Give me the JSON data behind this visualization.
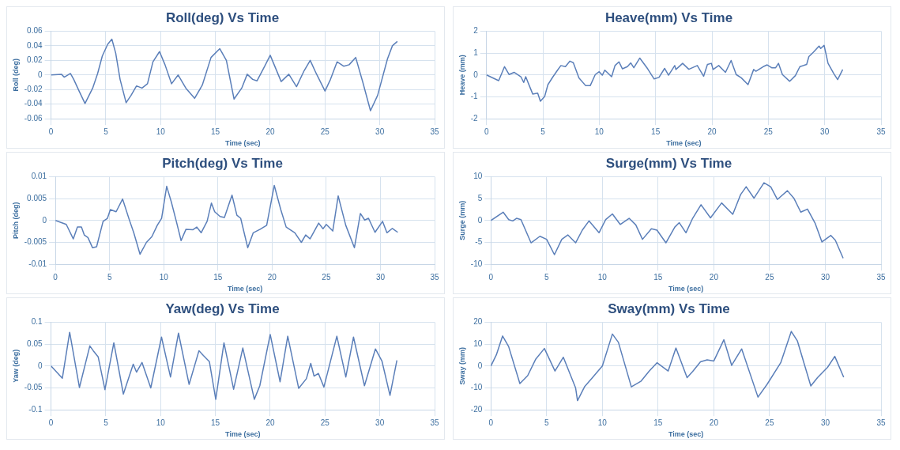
{
  "chart_data": [
    {
      "type": "line",
      "title": "Roll(deg) Vs Time",
      "xlabel": "Time (sec)",
      "ylabel": "Roll (deg)",
      "xlim": [
        0,
        35
      ],
      "xticks": [
        0,
        5,
        10,
        15,
        20,
        25,
        30,
        35
      ],
      "ylim": [
        -0.06,
        0.06
      ],
      "yticks": [
        -0.06,
        -0.04,
        -0.02,
        0,
        0.02,
        0.04,
        0.06
      ],
      "grid": true,
      "series": [
        {
          "color": "#5b7fb9",
          "x": [
            0,
            0.95,
            1.2,
            1.77,
            2.07,
            2.56,
            3.1,
            3.8,
            4.25,
            4.68,
            5.17,
            5.55,
            5.9,
            6.3,
            6.85,
            7.3,
            7.8,
            8.3,
            8.8,
            9.3,
            9.9,
            10.4,
            11.0,
            11.6,
            12.3,
            13.1,
            13.8,
            14.6,
            15.4,
            16.0,
            16.7,
            17.4,
            17.9,
            18.4,
            18.8,
            19.5,
            20.0,
            21.0,
            21.7,
            22.4,
            23.1,
            23.65,
            24.2,
            25.0,
            25.5,
            26.1,
            26.7,
            27.2,
            27.8,
            28.45,
            29.15,
            29.8,
            30.7,
            31.15,
            31.6
          ],
          "values": [
            0,
            0.001,
            -0.003,
            0.002,
            -0.006,
            -0.022,
            -0.039,
            -0.018,
            0.002,
            0.026,
            0.042,
            0.049,
            0.03,
            -0.006,
            -0.038,
            -0.028,
            -0.015,
            -0.018,
            -0.012,
            0.018,
            0.032,
            0.014,
            -0.012,
            0,
            -0.018,
            -0.032,
            -0.014,
            0.024,
            0.036,
            0.02,
            -0.033,
            -0.018,
            0.001,
            -0.006,
            -0.008,
            0.012,
            0.027,
            -0.009,
            0.001,
            -0.016,
            0.006,
            0.02,
            0.002,
            -0.022,
            -0.006,
            0.018,
            0.012,
            0.014,
            0.024,
            -0.01,
            -0.049,
            -0.028,
            0.022,
            0.04,
            0.046
          ]
        }
      ]
    },
    {
      "type": "line",
      "title": "Heave(mm) Vs Time",
      "xlabel": "Time (sec)",
      "ylabel": "Heave (mm)",
      "xlim": [
        0,
        35
      ],
      "xticks": [
        0,
        5,
        10,
        15,
        20,
        25,
        30,
        35
      ],
      "ylim": [
        -2,
        2
      ],
      "yticks": [
        -2,
        -1,
        0,
        1,
        2
      ],
      "grid": true,
      "series": [
        {
          "color": "#5b7fb9",
          "x": [
            0,
            1.08,
            1.6,
            2.0,
            2.45,
            3.05,
            3.3,
            3.48,
            3.8,
            4.1,
            4.54,
            4.78,
            5.16,
            5.45,
            5.9,
            6.3,
            6.6,
            7.0,
            7.4,
            7.7,
            8.2,
            8.8,
            9.2,
            9.65,
            10.0,
            10.27,
            10.5,
            11.1,
            11.4,
            11.75,
            12.06,
            12.5,
            12.8,
            13.07,
            13.6,
            14.3,
            14.87,
            15.3,
            15.8,
            16.15,
            16.7,
            16.8,
            17.4,
            17.95,
            18.7,
            19.26,
            19.6,
            19.95,
            20.1,
            20.6,
            21.2,
            21.7,
            22.15,
            22.6,
            23.2,
            23.7,
            23.9,
            24.55,
            24.9,
            25.3,
            25.65,
            25.9,
            26.25,
            26.9,
            27.4,
            27.8,
            28.4,
            28.6,
            29.0,
            29.5,
            29.65,
            29.95,
            30.3,
            30.8,
            31.15,
            31.6
          ],
          "values": [
            0,
            -0.26,
            0.38,
            0.02,
            0.12,
            -0.08,
            -0.34,
            -0.08,
            -0.49,
            -0.87,
            -0.83,
            -1.2,
            -0.98,
            -0.44,
            -0.08,
            0.22,
            0.43,
            0.38,
            0.63,
            0.56,
            -0.13,
            -0.49,
            -0.49,
            0.02,
            0.15,
            -0.01,
            0.22,
            -0.08,
            0.43,
            0.6,
            0.28,
            0.38,
            0.55,
            0.33,
            0.77,
            0.28,
            -0.18,
            -0.11,
            0.3,
            -0.01,
            0.43,
            0.25,
            0.53,
            0.26,
            0.43,
            -0.06,
            0.48,
            0.53,
            0.25,
            0.43,
            0.12,
            0.66,
            0.02,
            -0.13,
            -0.44,
            0.25,
            0.17,
            0.38,
            0.46,
            0.33,
            0.33,
            0.53,
            0.02,
            -0.29,
            -0.03,
            0.38,
            0.48,
            0.84,
            1.04,
            1.32,
            1.21,
            1.35,
            0.53,
            0.07,
            -0.21,
            0.25
          ]
        }
      ]
    },
    {
      "type": "line",
      "title": "Pitch(deg) Vs Time",
      "xlabel": "Time (sec)",
      "ylabel": "Pitch (deg)",
      "xlim": [
        0,
        35
      ],
      "xticks": [
        0,
        5,
        10,
        15,
        20,
        25,
        30,
        35
      ],
      "ylim": [
        -0.01,
        0.01
      ],
      "yticks": [
        -0.01,
        -0.005,
        0,
        0.005,
        0.01
      ],
      "grid": true,
      "series": [
        {
          "color": "#5b7fb9",
          "x": [
            0,
            1.0,
            1.65,
            2.03,
            2.4,
            2.66,
            3.0,
            3.42,
            3.8,
            4.4,
            4.8,
            5.07,
            5.6,
            6.2,
            6.8,
            7.23,
            7.81,
            8.4,
            8.9,
            9.4,
            9.8,
            10.27,
            10.7,
            11.16,
            11.6,
            12.05,
            12.7,
            13.05,
            13.45,
            14.0,
            14.4,
            14.7,
            15.2,
            15.6,
            16.3,
            16.75,
            17.1,
            17.75,
            18.26,
            18.9,
            19.5,
            20.2,
            20.8,
            21.3,
            22.1,
            22.7,
            23.1,
            23.5,
            24.3,
            24.7,
            25.0,
            25.6,
            26.1,
            26.8,
            27.6,
            28.15,
            28.55,
            28.9,
            29.5,
            30.2,
            30.6,
            31.1,
            31.6
          ],
          "values": [
            0,
            -0.0009,
            -0.0042,
            -0.0015,
            -0.0015,
            -0.0033,
            -0.0039,
            -0.0062,
            -0.006,
            -0.0002,
            0.0005,
            0.0025,
            0.002,
            0.0049,
            0.0003,
            -0.0028,
            -0.0077,
            -0.005,
            -0.0037,
            -0.0011,
            0.0005,
            0.0078,
            0.0042,
            -0.0002,
            -0.0046,
            -0.002,
            -0.0021,
            -0.0015,
            -0.0028,
            -0.0002,
            0.004,
            0.002,
            0.0009,
            0.0007,
            0.0058,
            0.0012,
            0.0005,
            -0.0062,
            -0.0028,
            -0.002,
            -0.0011,
            0.008,
            0.0025,
            -0.0015,
            -0.0028,
            -0.005,
            -0.0033,
            -0.0042,
            -0.0006,
            -0.0019,
            -0.0009,
            -0.0024,
            0.0056,
            -0.0011,
            -0.0062,
            0.0016,
            0.0001,
            0.0005,
            -0.0027,
            -0.0002,
            -0.0028,
            -0.0018,
            -0.0027
          ]
        }
      ]
    },
    {
      "type": "line",
      "title": "Surge(mm) Vs Time",
      "xlabel": "Time (sec)",
      "ylabel": "Surge (mm)",
      "xlim": [
        0,
        35
      ],
      "xticks": [
        0,
        5,
        10,
        15,
        20,
        25,
        30,
        35
      ],
      "ylim": [
        -10,
        10
      ],
      "yticks": [
        -10,
        -5,
        0,
        5,
        10
      ],
      "grid": true,
      "series": [
        {
          "color": "#5b7fb9",
          "x": [
            0,
            1.1,
            1.6,
            1.96,
            2.3,
            2.7,
            3.6,
            4.4,
            5.0,
            5.7,
            6.36,
            6.9,
            7.6,
            8.2,
            8.8,
            9.7,
            10.3,
            10.9,
            11.6,
            12.4,
            13.0,
            13.6,
            14.4,
            14.9,
            15.7,
            16.5,
            16.9,
            17.5,
            18.1,
            18.85,
            19.7,
            20.7,
            21.7,
            22.4,
            22.9,
            23.6,
            24.5,
            25.1,
            25.7,
            26.6,
            27.2,
            27.8,
            28.4,
            29.1,
            29.7,
            30.5,
            30.9,
            31.6
          ],
          "values": [
            0,
            1.9,
            0.2,
            -0.1,
            0.5,
            0.2,
            -5.1,
            -3.6,
            -4.3,
            -7.8,
            -4.3,
            -3.3,
            -5.1,
            -2.2,
            -0.1,
            -2.8,
            0.2,
            1.5,
            -0.9,
            0.5,
            -1.0,
            -4.3,
            -1.9,
            -2.2,
            -5.1,
            -1.5,
            -0.5,
            -2.8,
            0.5,
            3.6,
            0.6,
            4.0,
            1.4,
            5.9,
            7.7,
            5.1,
            8.6,
            7.7,
            4.8,
            6.8,
            5.0,
            1.9,
            2.6,
            -0.7,
            -4.9,
            -3.4,
            -4.5,
            -8.6
          ]
        }
      ]
    },
    {
      "type": "line",
      "title": "Yaw(deg) Vs Time",
      "xlabel": "Time (sec)",
      "ylabel": "Yaw (deg)",
      "xlim": [
        0,
        35
      ],
      "xticks": [
        0,
        5,
        10,
        15,
        20,
        25,
        30,
        35
      ],
      "ylim": [
        -0.1,
        0.1
      ],
      "yticks": [
        -0.1,
        -0.05,
        0,
        0.05,
        0.1
      ],
      "grid": true,
      "series": [
        {
          "color": "#5b7fb9",
          "x": [
            0,
            1.03,
            1.7,
            2.59,
            3.54,
            3.85,
            4.3,
            4.92,
            5.73,
            6.6,
            7.5,
            7.8,
            8.3,
            9.1,
            10.08,
            10.9,
            11.63,
            12.6,
            13.5,
            13.9,
            14.45,
            15.03,
            15.78,
            16.66,
            17.5,
            18.55,
            19.05,
            20.0,
            20.9,
            21.6,
            22.6,
            23.3,
            23.7,
            24.0,
            24.4,
            24.9,
            26.08,
            26.9,
            27.6,
            28.6,
            29.6,
            30.2,
            30.93,
            31.56
          ],
          "values": [
            0,
            -0.028,
            0.077,
            -0.049,
            0.046,
            0.035,
            0.021,
            -0.054,
            0.053,
            -0.064,
            0.004,
            -0.014,
            0.008,
            -0.05,
            0.066,
            -0.025,
            0.075,
            -0.042,
            0.035,
            0.024,
            0.01,
            -0.076,
            0.053,
            -0.053,
            0.041,
            -0.076,
            -0.045,
            0.072,
            -0.036,
            0.068,
            -0.051,
            -0.029,
            0.006,
            -0.023,
            -0.017,
            -0.048,
            0.068,
            -0.025,
            0.066,
            -0.045,
            0.039,
            0.011,
            -0.067,
            0.013
          ]
        }
      ]
    },
    {
      "type": "line",
      "title": "Sway(mm) Vs Time",
      "xlabel": "Time (sec)",
      "ylabel": "Sway (mm)",
      "xlim": [
        0,
        35
      ],
      "xticks": [
        0,
        5,
        10,
        15,
        20,
        25,
        30,
        35
      ],
      "ylim": [
        -20,
        20
      ],
      "yticks": [
        -20,
        -10,
        0,
        10,
        20
      ],
      "grid": true,
      "series": [
        {
          "color": "#5b7fb9",
          "x": [
            0,
            0.49,
            1.05,
            1.59,
            2.6,
            3.3,
            4.03,
            4.8,
            5.75,
            6.5,
            7.6,
            7.77,
            8.4,
            9.05,
            10.0,
            10.9,
            11.44,
            12.6,
            13.45,
            14.2,
            14.9,
            15.9,
            16.6,
            17.6,
            18.1,
            18.8,
            19.4,
            20.0,
            20.9,
            21.6,
            22.5,
            23.96,
            24.8,
            26.0,
            26.95,
            27.5,
            28.7,
            29.3,
            30.2,
            30.85,
            31.65
          ],
          "values": [
            0,
            5.1,
            13.7,
            8.9,
            -8.0,
            -4.4,
            3.2,
            8.0,
            -2.3,
            4.0,
            -10,
            -15.8,
            -9.5,
            -5.7,
            0,
            14.6,
            10.8,
            -9.5,
            -7.0,
            -2.3,
            1.5,
            -2.3,
            8.2,
            -5.3,
            -2.5,
            1.9,
            2.8,
            2.3,
            12.0,
            0.3,
            7.8,
            -14.2,
            -8.2,
            1.5,
            15.8,
            11.4,
            -9.1,
            -5.3,
            -0.6,
            4.4,
            -5.1
          ]
        }
      ]
    }
  ]
}
